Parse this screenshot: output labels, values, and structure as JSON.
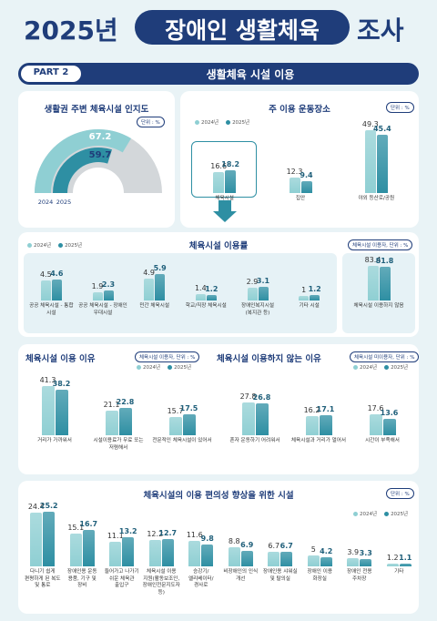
{
  "header": {
    "year": "2025년",
    "title": "장애인 생활체육",
    "suffix": "조사"
  },
  "part": {
    "label": "PART 2",
    "title": "생활체육 시설 이용"
  },
  "chart_data": [
    {
      "type": "gauge",
      "title": "생활권 주변 체육시설 인지도",
      "unit": "단위 : %",
      "series": [
        {
          "name": "2024",
          "color": "#8fcfd3",
          "values": [
            67.2
          ]
        },
        {
          "name": "2025",
          "color": "#2e8fa3",
          "values": [
            59.7
          ]
        }
      ]
    },
    {
      "type": "bar",
      "title": "주 이용 운동장소",
      "unit": "단위 : %",
      "categories": [
        "체육시설",
        "집안",
        "야외 등산로/공원"
      ],
      "series": [
        {
          "name": "2024년",
          "color": "#8fcfd3",
          "values": [
            16.6,
            12.3,
            49.3
          ]
        },
        {
          "name": "2025년",
          "color": "#2e8fa3",
          "values": [
            18.2,
            9.4,
            45.4
          ]
        }
      ]
    },
    {
      "type": "bar",
      "title": "체육시설 이용률",
      "categories": [
        "공공 체육시설 - 통합 시설",
        "공공 체육시설 - 장애인 우대시설",
        "민간 체육시설",
        "학교/직장 체육시설",
        "장애인복지시설 (복지관 등)",
        "기타 시설"
      ],
      "series": [
        {
          "name": "2024년",
          "color": "#8fcfd3",
          "values": [
            4.5,
            1.9,
            4.9,
            1.4,
            2.9,
            1.0
          ]
        },
        {
          "name": "2025년",
          "color": "#2e8fa3",
          "values": [
            4.6,
            2.3,
            5.9,
            1.2,
            3.1,
            1.2
          ]
        }
      ]
    },
    {
      "type": "bar",
      "unit": "체육시설 이용자, 단위 : %",
      "categories": [
        "체육시설 이용하지 않음"
      ],
      "series": [
        {
          "color": "#8fcfd3",
          "values": [
            83.4
          ]
        },
        {
          "color": "#2e8fa3",
          "values": [
            81.8
          ]
        }
      ]
    },
    {
      "type": "bar",
      "title": "체육시설 이용 이유",
      "unit": "체육시설 이용자, 단위 : %",
      "categories": [
        "거리가 가까워서",
        "시설이용료가 무료 또는 저렴해서",
        "전문적인 체육시설이 있어서"
      ],
      "series": [
        {
          "name": "2024년",
          "color": "#8fcfd3",
          "values": [
            41.3,
            21.1,
            15.7
          ]
        },
        {
          "name": "2025년",
          "color": "#2e8fa3",
          "values": [
            38.2,
            22.8,
            17.5
          ]
        }
      ]
    },
    {
      "type": "bar",
      "title": "체육시설 이용하지 않는 이유",
      "unit": "체육시설 미이용자, 단위 : %",
      "categories": [
        "혼자 운동하기 어려워서",
        "체육시설과 거리가 멀어서",
        "시간이 부족해서"
      ],
      "series": [
        {
          "name": "2024년",
          "color": "#8fcfd3",
          "values": [
            27.8,
            16.2,
            17.6
          ]
        },
        {
          "name": "2025년",
          "color": "#2e8fa3",
          "values": [
            26.8,
            17.1,
            13.6
          ]
        }
      ]
    },
    {
      "type": "bar",
      "title": "체육시설의 이용 편의성 향상을 위한 시설",
      "unit": "단위 : %",
      "categories": [
        "다니기 쉽게 편평하게 된 복도 및 통로",
        "장애인용 운동 용품, 기구 및 장비",
        "들어가고 나가기 쉬운 체육관 출입구",
        "체육시설 이용 지원(활동보조인, 장애인전문지도자 등)",
        "승강기/ 엘리베이터/경사로",
        "비장애인의 인식 개선",
        "장애인용 샤워실 및 탈의실",
        "장애인 이용 화장실",
        "장애인 전용 주차장",
        "기타"
      ],
      "series": [
        {
          "name": "2024년",
          "color": "#8fcfd3",
          "values": [
            24.4,
            15.1,
            11.1,
            12.2,
            11.6,
            8.8,
            6.7,
            5.0,
            3.9,
            1.2
          ]
        },
        {
          "name": "2025년",
          "color": "#2e8fa3",
          "values": [
            25.2,
            16.7,
            13.2,
            12.7,
            9.8,
            6.9,
            6.7,
            4.2,
            3.3,
            1.1
          ]
        }
      ]
    }
  ]
}
